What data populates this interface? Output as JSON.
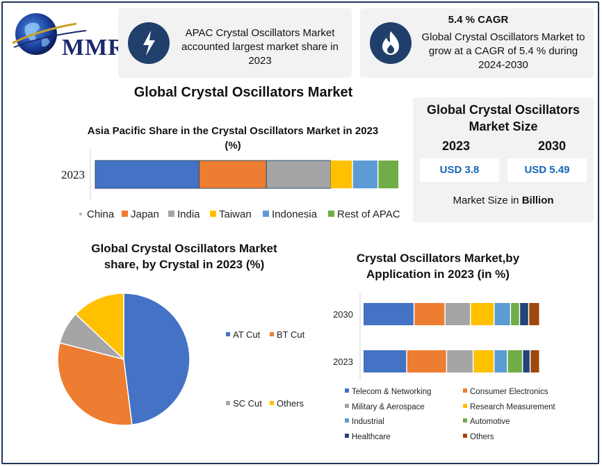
{
  "logo": {
    "text": "MMR"
  },
  "highlights": [
    {
      "icon": "lightning-icon",
      "title": "",
      "text": "APAC Crystal Oscillators Market accounted largest market share in 2023"
    },
    {
      "icon": "flame-icon",
      "title": "5.4 % CAGR",
      "text": "Global Crystal Oscillators Market to grow at a CAGR of 5.4 % during 2024-2030"
    }
  ],
  "main_title": "Global Crystal Oscillators Market",
  "market_size": {
    "title": "Global Crystal Oscillators Market Size",
    "year_1": "2023",
    "year_2": "2030",
    "value_1": "USD 3.8",
    "value_2": "USD 5.49",
    "unit_prefix": "Market Size in ",
    "unit_bold": "Billion"
  },
  "colors": {
    "blue": "#4472c4",
    "orange": "#ed7d31",
    "gray": "#a5a5a5",
    "yellow": "#ffc000",
    "lightblue": "#5b9bd5",
    "green": "#70ad47",
    "navy": "#264478",
    "brown": "#9e480e"
  },
  "chart_data": [
    {
      "type": "bar",
      "orientation": "horizontal-stacked",
      "title": "Asia Pacific Share in the Crystal Oscillators  Market in 2023 (%)",
      "categories": [
        "2023"
      ],
      "series": [
        {
          "name": "China",
          "values": [
            34
          ]
        },
        {
          "name": "Japan",
          "values": [
            22
          ]
        },
        {
          "name": "India",
          "values": [
            21
          ]
        },
        {
          "name": "Taiwan",
          "values": [
            7
          ]
        },
        {
          "name": "Indonesia",
          "values": [
            8
          ]
        },
        {
          "name": "Rest of APAC",
          "values": [
            6.5
          ]
        }
      ],
      "legend": "bottom"
    },
    {
      "type": "pie",
      "title": "Global Crystal Oscillators Market share, by Crystal in 2023  (%)",
      "labels": [
        "AT Cut",
        "BT Cut",
        "SC Cut",
        "Others"
      ],
      "values": [
        48,
        31,
        8,
        13
      ],
      "legend": "right"
    },
    {
      "type": "bar",
      "orientation": "horizontal-stacked",
      "title": "Crystal Oscillators Market,by Application in 2023 (in %)",
      "categories": [
        "2030",
        "2023"
      ],
      "series": [
        {
          "name": "Telecom & Networking",
          "values": [
            28,
            23
          ]
        },
        {
          "name": "Consumer Electronics",
          "values": [
            17,
            21
          ]
        },
        {
          "name": "Military & Aerospace",
          "values": [
            14,
            14
          ]
        },
        {
          "name": "Research Measurement",
          "values": [
            13,
            11
          ]
        },
        {
          "name": "Industrial",
          "values": [
            9,
            7
          ]
        },
        {
          "name": "Automotive",
          "values": [
            5,
            8
          ]
        },
        {
          "name": "Healthcare",
          "values": [
            5,
            4
          ]
        },
        {
          "name": "Others",
          "values": [
            6,
            5
          ]
        }
      ],
      "legend": "bottom"
    }
  ]
}
